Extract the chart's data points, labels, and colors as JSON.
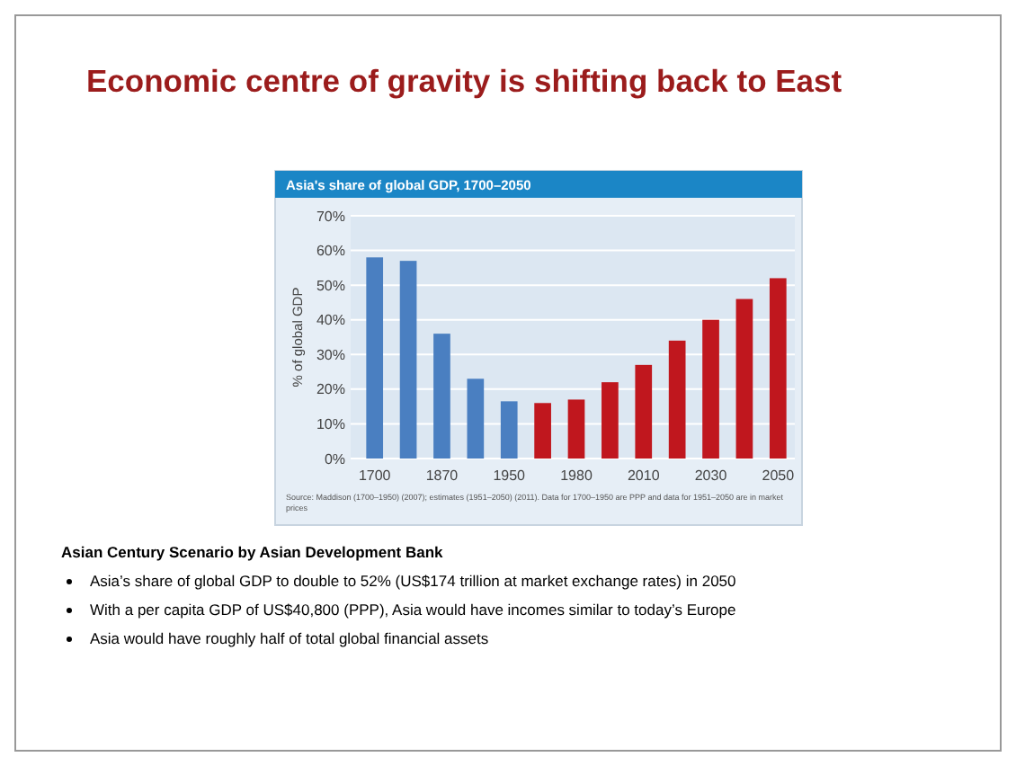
{
  "chart_data": {
    "type": "bar",
    "title": "Economic centre of gravity is shifting back to East",
    "subtitle": "Asia's share of global GDP, 1700–2050",
    "ylabel": "% of global GDP",
    "categories": [
      "1700",
      null,
      "1870",
      null,
      "1950",
      null,
      "1980",
      null,
      "2010",
      null,
      "2030",
      null,
      "2050"
    ],
    "values": [
      58,
      57,
      36,
      23,
      16.5,
      16,
      17,
      22,
      27,
      34,
      40,
      46,
      52
    ],
    "colors": [
      "#4a7fc1",
      "#4a7fc1",
      "#4a7fc1",
      "#4a7fc1",
      "#4a7fc1",
      "#c0171e",
      "#c0171e",
      "#c0171e",
      "#c0171e",
      "#c0171e",
      "#c0171e",
      "#c0171e",
      "#c0171e"
    ],
    "ylim": [
      0,
      70
    ],
    "yticks": [
      {
        "value": 0,
        "label": "0%"
      },
      {
        "value": 10,
        "label": "10%"
      },
      {
        "value": 20,
        "label": "20%"
      },
      {
        "value": 30,
        "label": "30%"
      },
      {
        "value": 40,
        "label": "40%"
      },
      {
        "value": 50,
        "label": "50%"
      },
      {
        "value": 60,
        "label": "60%"
      },
      {
        "value": 70,
        "label": "70%"
      }
    ],
    "grid": "y",
    "annotations": [
      "Source: Maddison (1700–1950) (2007); estimates (1951–2050) (2011). Data for 1700–1950 are PPP and data for 1951–2050 are in market prices",
      "Asian Century Scenario by Asian Development Bank",
      "Asia’s share of global GDP to double to 52% (US$174 trillion at market exchange rates) in 2050",
      "With a per capita GDP of US$40,800 (PPP), Asia would have incomes similar to today’s Europe",
      "Asia would have roughly half of total global financial assets"
    ]
  }
}
